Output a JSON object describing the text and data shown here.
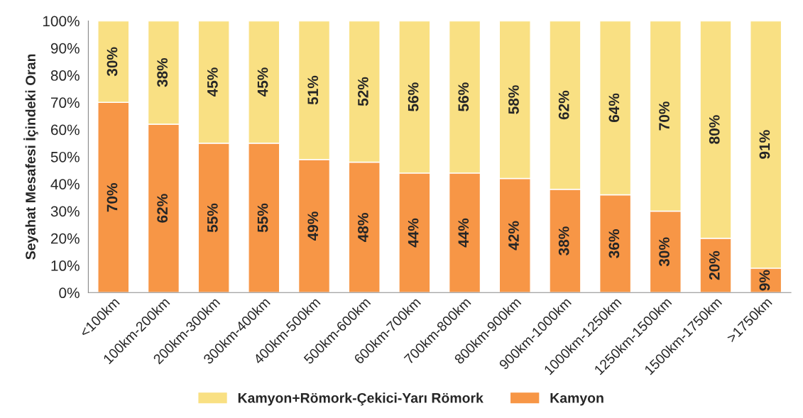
{
  "chart_data": {
    "type": "bar",
    "stacked": true,
    "ylabel": "Seyahat Mesafesi İçindeki Oran",
    "categories": [
      "<100km",
      "100km-200km",
      "200km-300km",
      "300km-400km",
      "400km-500km",
      "500km-600km",
      "600km-700km",
      "700km-800km",
      "800km-900km",
      "900km-1000km",
      "1000km-1250km",
      "1250km-1500km",
      "1500km-1750km",
      ">1750km"
    ],
    "series": [
      {
        "name": "Kamyon",
        "color": "#f79646",
        "values": [
          70,
          62,
          55,
          55,
          49,
          48,
          44,
          44,
          42,
          38,
          36,
          30,
          20,
          9
        ],
        "value_labels": [
          "70%",
          "62%",
          "55%",
          "55%",
          "49%",
          "48%",
          "44%",
          "44%",
          "42%",
          "38%",
          "36%",
          "30%",
          "20%",
          "9%"
        ]
      },
      {
        "name": "Kamyon+Römork-Çekici-Yarı Römork",
        "color": "#f9e083",
        "values": [
          30,
          38,
          45,
          45,
          51,
          52,
          56,
          56,
          58,
          62,
          64,
          70,
          80,
          91
        ],
        "value_labels": [
          "30%",
          "38%",
          "45%",
          "45%",
          "51%",
          "52%",
          "56%",
          "56%",
          "58%",
          "62%",
          "64%",
          "70%",
          "80%",
          "91%"
        ]
      }
    ],
    "ylim": [
      0,
      100
    ],
    "yticks": [
      {
        "value": 0,
        "label": "0%"
      },
      {
        "value": 10,
        "label": "10%"
      },
      {
        "value": 20,
        "label": "20%"
      },
      {
        "value": 30,
        "label": "30%"
      },
      {
        "value": 40,
        "label": "40%"
      },
      {
        "value": 50,
        "label": "50%"
      },
      {
        "value": 60,
        "label": "60%"
      },
      {
        "value": 70,
        "label": "70%"
      },
      {
        "value": 80,
        "label": "80%"
      },
      {
        "value": 90,
        "label": "90%"
      },
      {
        "value": 100,
        "label": "100%"
      }
    ],
    "grid": false,
    "legend": "bottom"
  }
}
